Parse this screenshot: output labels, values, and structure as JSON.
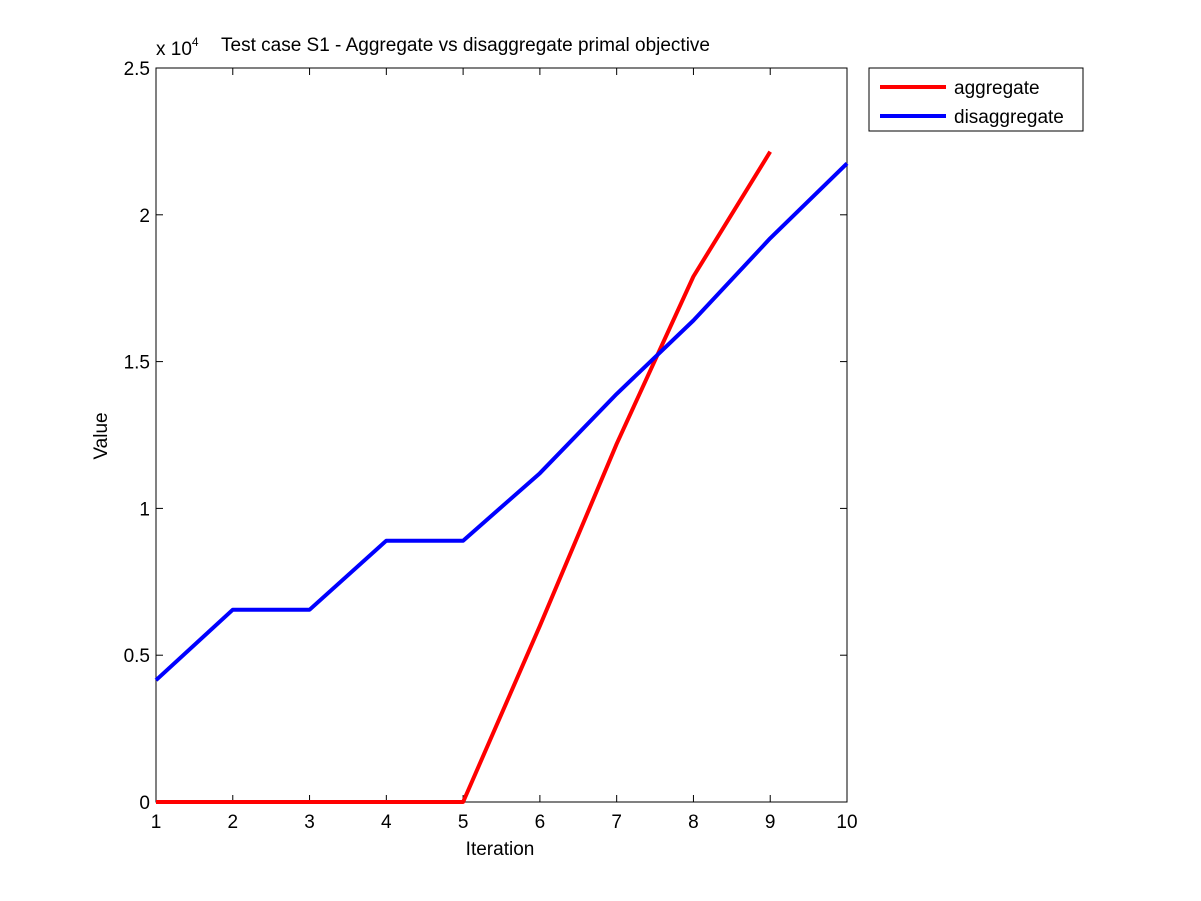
{
  "chart_data": {
    "type": "line",
    "title": "Test case S1 - Aggregate vs disaggregate primal objective",
    "xlabel": "Iteration",
    "ylabel": "Value",
    "xlim": [
      1,
      10
    ],
    "ylim": [
      0,
      25000
    ],
    "x_ticks": [
      1,
      2,
      3,
      4,
      5,
      6,
      7,
      8,
      9,
      10
    ],
    "x_tick_labels": [
      "1",
      "2",
      "3",
      "4",
      "5",
      "6",
      "7",
      "8",
      "9",
      "10"
    ],
    "y_ticks": [
      0,
      5000,
      10000,
      15000,
      20000,
      25000
    ],
    "y_tick_labels": [
      "0",
      "0.5",
      "1",
      "1.5",
      "2",
      "2.5"
    ],
    "y_multiplier_base": "x 10",
    "y_multiplier_exp": "4",
    "grid": false,
    "legend_position": "outside top-right",
    "series": [
      {
        "name": "aggregate",
        "color": "#ff0000",
        "x": [
          1,
          2,
          3,
          4,
          5,
          6,
          7,
          8,
          9
        ],
        "y": [
          0,
          0,
          0,
          0,
          0,
          6000,
          12200,
          17900,
          22150
        ]
      },
      {
        "name": "disaggregate",
        "color": "#0000ff",
        "x": [
          1,
          2,
          3,
          4,
          5,
          6,
          7,
          8,
          9,
          10
        ],
        "y": [
          4150,
          6550,
          6550,
          8900,
          8900,
          11200,
          13900,
          16400,
          19200,
          21750
        ]
      }
    ]
  }
}
